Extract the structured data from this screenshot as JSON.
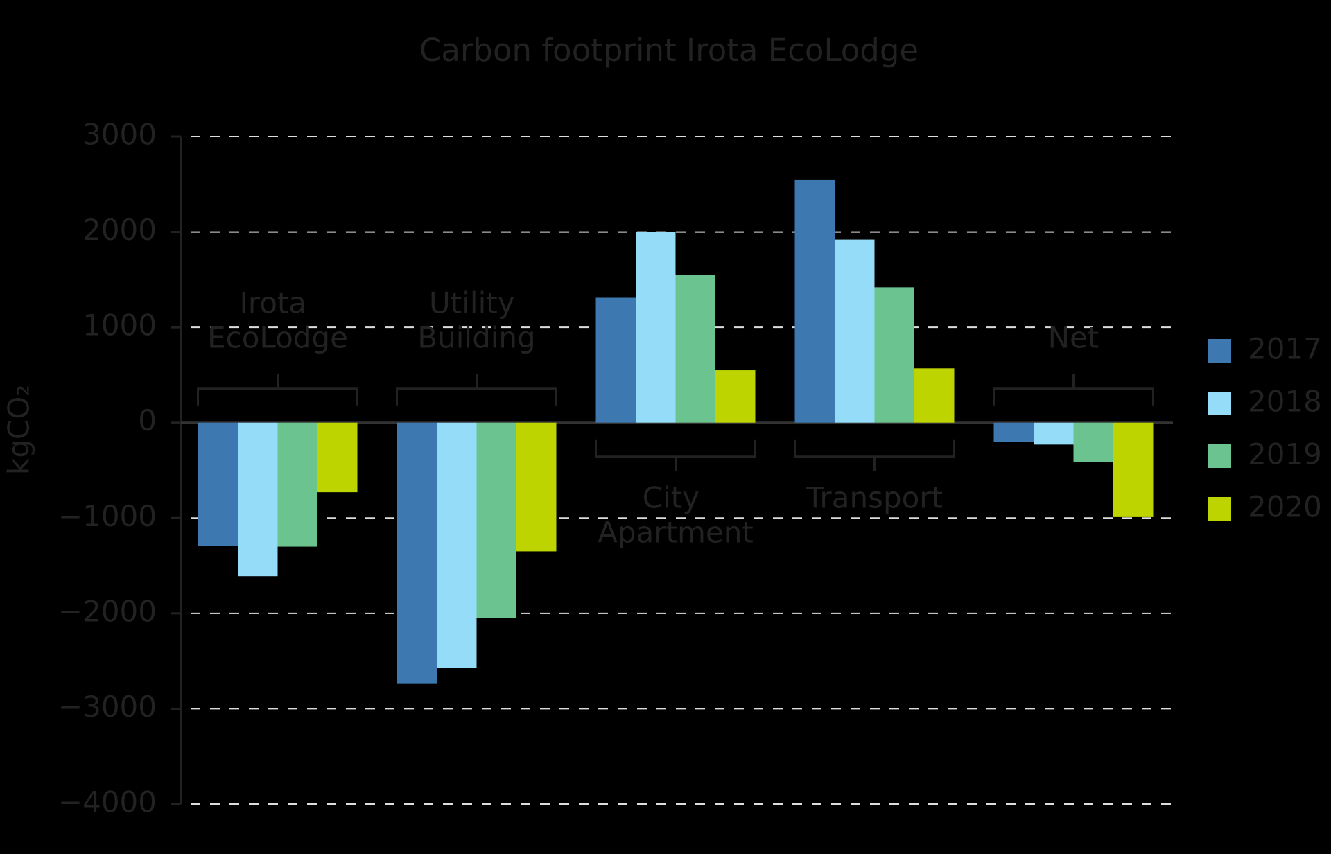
{
  "chart_data": {
    "type": "bar",
    "title": "Carbon footprint Irota EcoLodge",
    "y_label": "kgCO₂",
    "categories": [
      "Irota EcoLodge",
      "Utility Building",
      "City Apartment",
      "Transport",
      "Net"
    ],
    "series": [
      {
        "name": "2017",
        "color": "#3d78b0",
        "values": [
          -1290,
          -2740,
          1310,
          2550,
          -200
        ]
      },
      {
        "name": "2018",
        "color": "#94dcf8",
        "values": [
          -1610,
          -2570,
          2000,
          1920,
          -230
        ]
      },
      {
        "name": "2019",
        "color": "#6bc48f",
        "values": [
          -1300,
          -2050,
          1550,
          1420,
          -410
        ]
      },
      {
        "name": "2020",
        "color": "#bdd400",
        "values": [
          -730,
          -1350,
          550,
          570,
          -990
        ]
      }
    ],
    "ylim": [
      -4000,
      3000
    ],
    "yticks": [
      {
        "value": -4000,
        "label": "−4000"
      },
      {
        "value": -3000,
        "label": "−3000"
      },
      {
        "value": -2000,
        "label": "−2000"
      },
      {
        "value": -1000,
        "label": "−1000"
      },
      0,
      1000,
      2000,
      3000
    ],
    "grid": true,
    "legend": "right"
  }
}
